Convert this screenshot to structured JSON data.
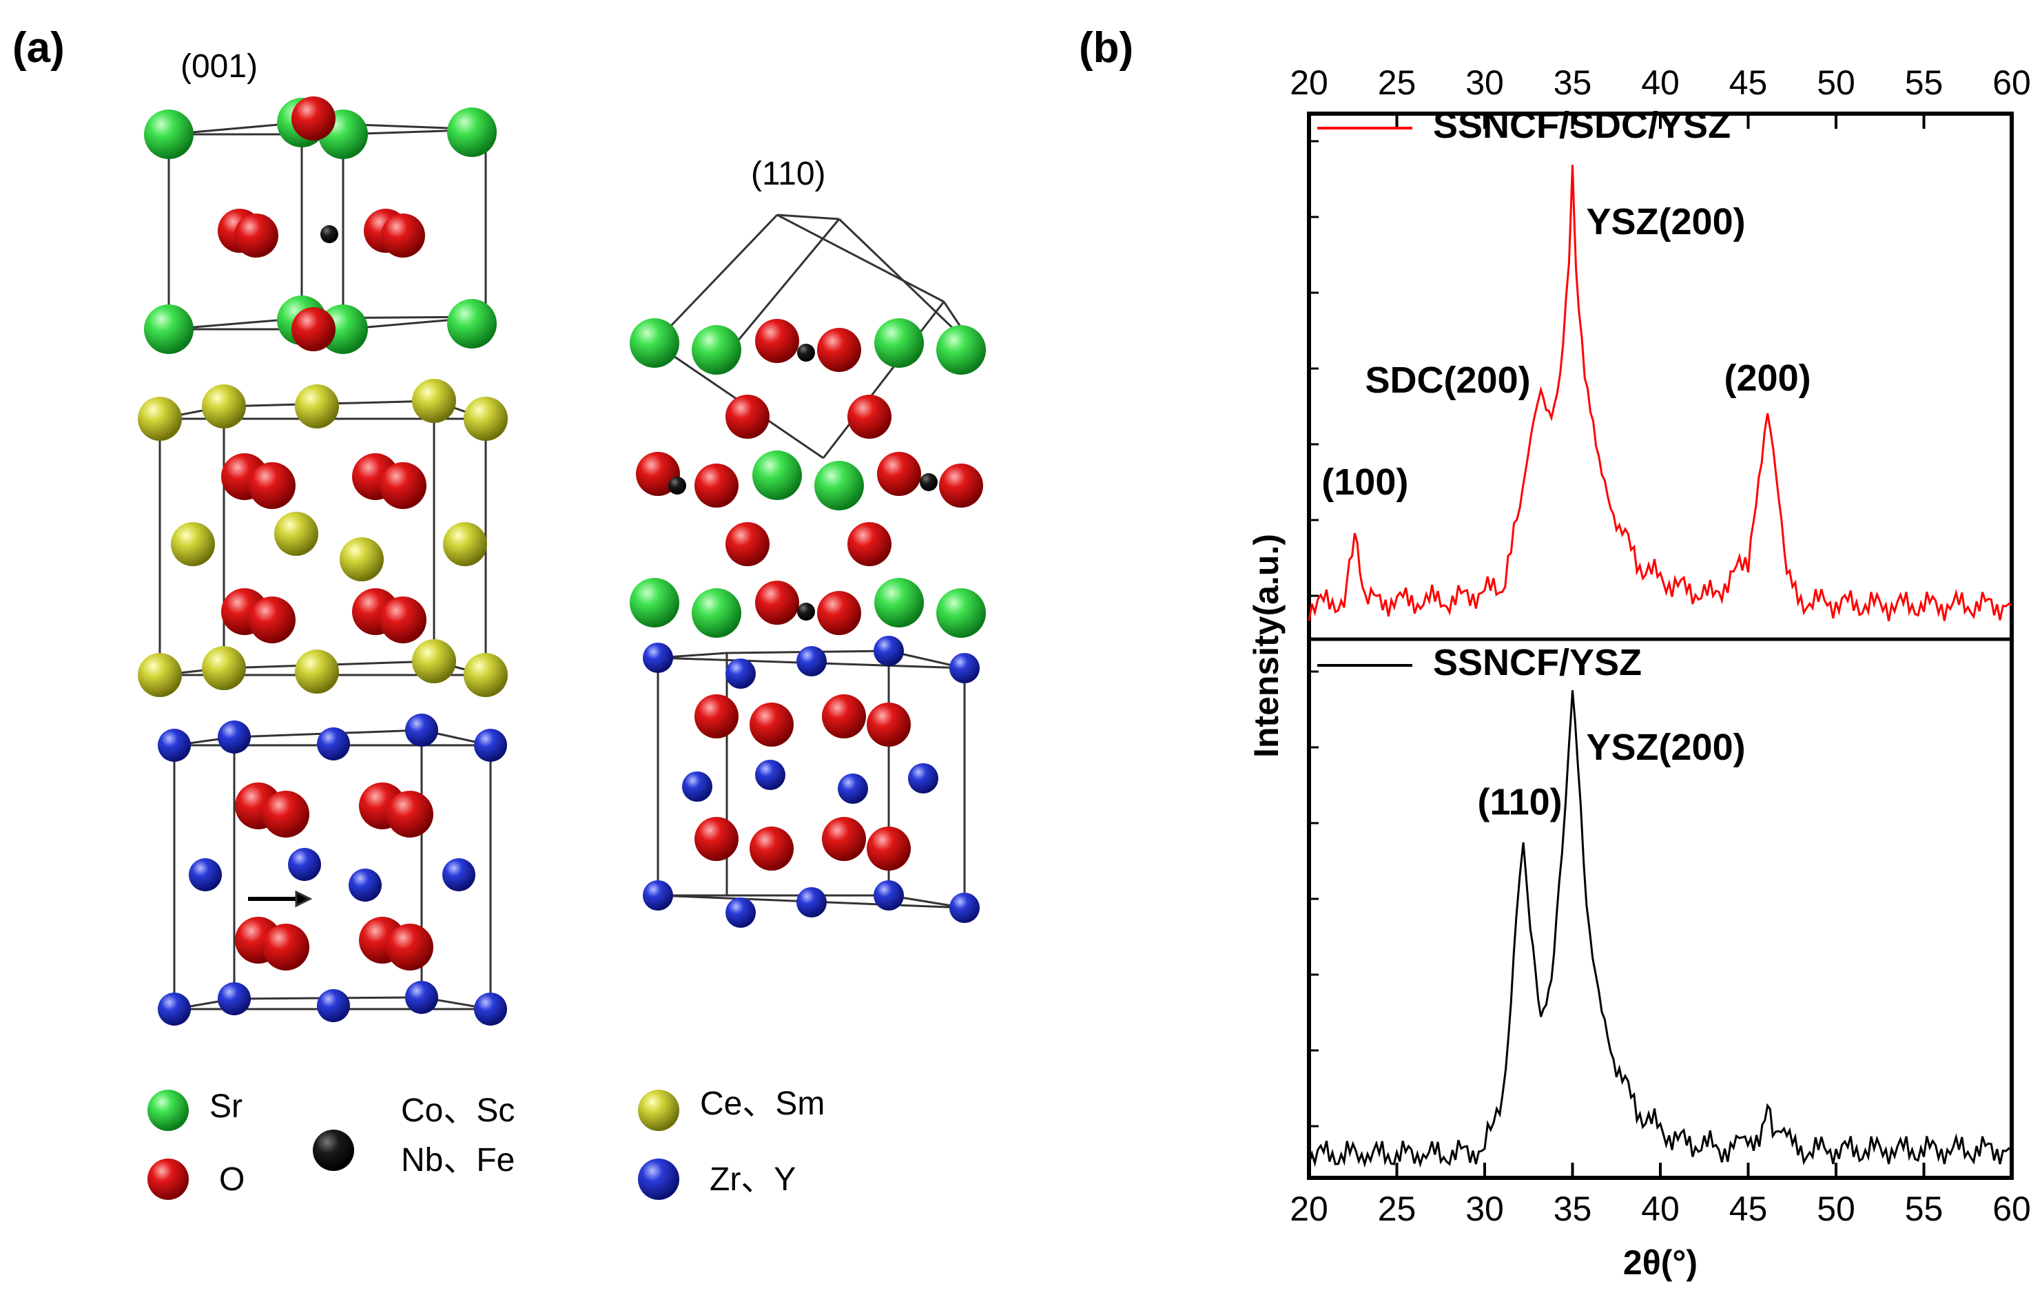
{
  "panels": {
    "a": "(a)",
    "b": "(b)"
  },
  "crystal": {
    "plane_001": "(001)",
    "plane_110": "(110)",
    "colors": {
      "sr": "#22c83a",
      "o": "#d60f0f",
      "b_site": "#111111",
      "ce": "#c6c82a",
      "zr": "#1a2bc8"
    },
    "legend": {
      "sr": "Sr",
      "o": "O",
      "b_site_line1": "Co、Sc",
      "b_site_line2": "Nb、Fe",
      "ce_sm": "Ce、Sm",
      "zr_y": "Zr、Y"
    }
  },
  "chart_data": {
    "type": "line",
    "title": "",
    "xlabel": "2θ(°)",
    "ylabel": "Intensity(a.u.)",
    "xlim": [
      20,
      60
    ],
    "xticks": [
      20,
      25,
      30,
      35,
      40,
      45,
      50,
      55,
      60
    ],
    "tick_labels": [
      "20",
      "25",
      "30",
      "35",
      "40",
      "45",
      "50",
      "55",
      "60"
    ],
    "ylim": [
      0,
      1
    ],
    "series": [
      {
        "name": "SSNCF/SDC/YSZ",
        "color": "#ff0000",
        "x": [
          20,
          22,
          22.6,
          23.2,
          28,
          31,
          32,
          32.8,
          33.2,
          33.8,
          34.3,
          34.8,
          35.0,
          35.2,
          35.7,
          36.5,
          37.5,
          39,
          41,
          43,
          45,
          45.6,
          46.1,
          46.6,
          47.2,
          48,
          52,
          56,
          60
        ],
        "values": [
          0.04,
          0.05,
          0.2,
          0.05,
          0.05,
          0.08,
          0.25,
          0.46,
          0.5,
          0.44,
          0.55,
          0.8,
          1.0,
          0.78,
          0.55,
          0.35,
          0.22,
          0.12,
          0.08,
          0.06,
          0.14,
          0.32,
          0.47,
          0.32,
          0.1,
          0.05,
          0.04,
          0.04,
          0.04
        ],
        "peaks": [
          {
            "label": "(100)",
            "x": 22.6
          },
          {
            "label": "SDC(200)",
            "x": 33.2
          },
          {
            "label": "YSZ(200)",
            "x": 35.0
          },
          {
            "label": "(200)",
            "x": 46.1
          }
        ]
      },
      {
        "name": "SSNCF/YSZ",
        "color": "#000000",
        "x": [
          20,
          28,
          30,
          31.2,
          31.8,
          32.2,
          32.6,
          33.2,
          33.8,
          34.4,
          34.8,
          35.0,
          35.3,
          35.8,
          36.5,
          37.5,
          39,
          41,
          44,
          45.8,
          46.1,
          46.4,
          48,
          52,
          56,
          60
        ],
        "values": [
          0.02,
          0.02,
          0.03,
          0.18,
          0.52,
          0.7,
          0.5,
          0.3,
          0.38,
          0.66,
          0.9,
          1.0,
          0.85,
          0.55,
          0.35,
          0.2,
          0.1,
          0.05,
          0.03,
          0.07,
          0.14,
          0.07,
          0.03,
          0.03,
          0.03,
          0.03
        ],
        "peaks": [
          {
            "label": "(110)",
            "x": 32.2
          },
          {
            "label": "YSZ(200)",
            "x": 35.0
          }
        ]
      }
    ]
  }
}
